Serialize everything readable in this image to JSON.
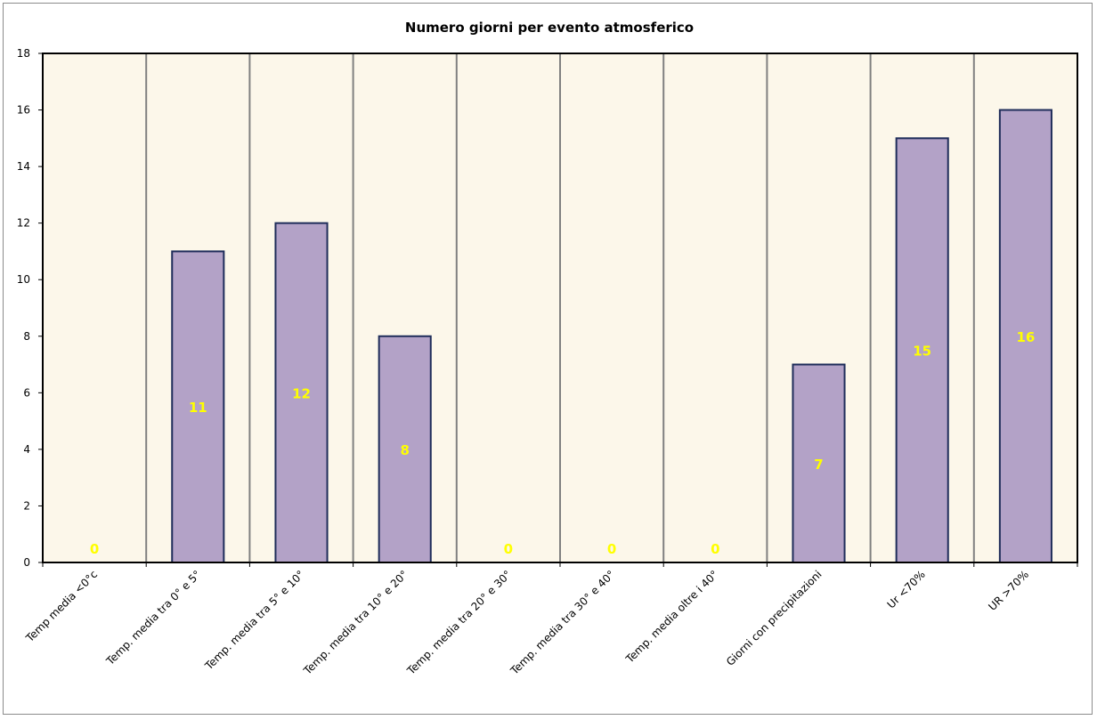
{
  "chart_data": {
    "type": "bar",
    "title": "Numero giorni  per evento atmosferico",
    "xlabel": "",
    "ylabel": "",
    "categories": [
      "Temp media <0°c",
      "Temp. media tra 0° e 5°",
      "Temp. media tra 5° e 10°",
      "Temp. media tra 10° e 20°",
      "Temp. media tra 20° e 30°",
      "Temp. media tra 30° e 40°",
      "Temp. media oltre i 40°",
      "Giorni con precipitazioni",
      "Ur  <70%",
      "UR >70%"
    ],
    "values": [
      0,
      11,
      12,
      8,
      0,
      0,
      0,
      7,
      15,
      16
    ],
    "ylim": [
      0,
      18
    ],
    "yticks": [
      0,
      2,
      4,
      6,
      8,
      10,
      12,
      14,
      16,
      18
    ],
    "grid": "vertical",
    "legend": "none",
    "colors": {
      "bar_fill": "#b3a2c7",
      "bar_stroke": "#1f2d5a",
      "plot_background": "#fcf7ea",
      "gridline": "#808080",
      "data_label": "#ffff00"
    }
  }
}
